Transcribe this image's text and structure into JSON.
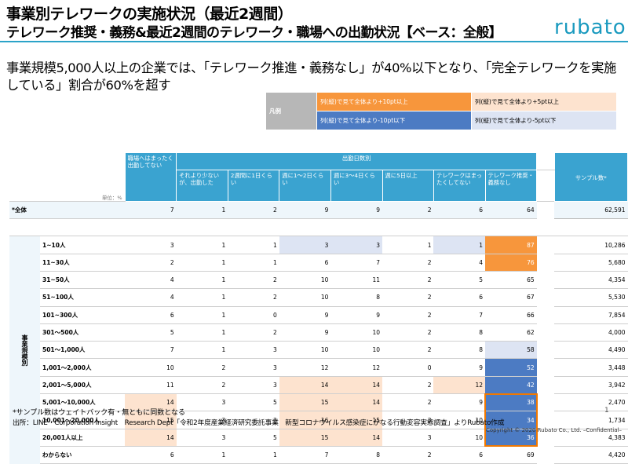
{
  "header": {
    "title": "事業別テレワークの実施状況（最近2週間）",
    "subtitle": "テレワーク推奨・義務&最近2週間のテレワーク・職場への出勤状況【ベース：全般】",
    "logo": "rubato"
  },
  "lead": "事業規模5,000人以上の企業では、「テレワーク推進・義務なし」が40%以下となり、「完全テレワークを実施している」割合が60%を超す",
  "legend": {
    "label": "凡例",
    "items": [
      "列(縦)で見て全体より+10pt以上",
      "列(縦)で見て全体より+5pt以上",
      "列(縦)で見て全体より-10pt以下",
      "列(縦)で見て全体より-5pt以下"
    ],
    "colors": {
      "plus10": "#f7963c",
      "plus5": "#fde3cf",
      "minus10": "#4c7bc3",
      "minus5": "#dde4f3",
      "header": "#3aa3d0"
    }
  },
  "table": {
    "unit": "単位：%",
    "group_header": "出勤日数別",
    "col0": "職場へはまったく出勤してない",
    "columns": [
      "それより少ないが、出勤した",
      "2週間に1日くらい",
      "週に1〜2日くらい",
      "週に3〜4日くらい",
      "週に5日以上",
      "テレワークはまったくしてない",
      "テレワーク推奨・義務なし"
    ],
    "sample_header": "サンプル数*",
    "side_label": "事業規模別",
    "total_row": {
      "label": "*全体",
      "values": [
        "7",
        "1",
        "2",
        "9",
        "9",
        "2",
        "6",
        "64"
      ],
      "sample": "62,591"
    },
    "rows": [
      {
        "label": "1~10人",
        "values": [
          "3",
          "1",
          "1",
          "3",
          "3",
          "1",
          "1",
          "87"
        ],
        "sample": "10,286",
        "tints": [
          "",
          "",
          "",
          "lb",
          "lb",
          "",
          "lb",
          "o"
        ]
      },
      {
        "label": "11~30人",
        "values": [
          "2",
          "1",
          "1",
          "6",
          "7",
          "2",
          "4",
          "76"
        ],
        "sample": "5,680",
        "tints": [
          "",
          "",
          "",
          "",
          "",
          "",
          "",
          "o"
        ]
      },
      {
        "label": "31~50人",
        "values": [
          "4",
          "1",
          "2",
          "10",
          "11",
          "2",
          "5",
          "65"
        ],
        "sample": "4,354",
        "tints": [
          "",
          "",
          "",
          "",
          "",
          "",
          "",
          ""
        ]
      },
      {
        "label": "51~100人",
        "values": [
          "4",
          "1",
          "2",
          "10",
          "8",
          "2",
          "6",
          "67"
        ],
        "sample": "5,530",
        "tints": [
          "",
          "",
          "",
          "",
          "",
          "",
          "",
          ""
        ]
      },
      {
        "label": "101~300人",
        "values": [
          "6",
          "1",
          "0",
          "9",
          "9",
          "2",
          "7",
          "66"
        ],
        "sample": "7,854",
        "tints": [
          "",
          "",
          "",
          "",
          "",
          "",
          "",
          ""
        ]
      },
      {
        "label": "301〜500人",
        "values": [
          "5",
          "1",
          "2",
          "9",
          "10",
          "2",
          "8",
          "62"
        ],
        "sample": "4,000",
        "tints": [
          "",
          "",
          "",
          "",
          "",
          "",
          "",
          ""
        ]
      },
      {
        "label": "501〜1,000人",
        "values": [
          "7",
          "1",
          "3",
          "10",
          "10",
          "2",
          "8",
          "58"
        ],
        "sample": "4,490",
        "tints": [
          "",
          "",
          "",
          "",
          "",
          "",
          "",
          "lb"
        ]
      },
      {
        "label": "1,001〜2,000人",
        "values": [
          "10",
          "2",
          "3",
          "12",
          "12",
          "0",
          "9",
          "52"
        ],
        "sample": "3,448",
        "tints": [
          "",
          "",
          "",
          "",
          "",
          "",
          "",
          "b"
        ]
      },
      {
        "label": "2,001〜5,000人",
        "values": [
          "11",
          "2",
          "3",
          "14",
          "14",
          "2",
          "12",
          "42"
        ],
        "sample": "3,942",
        "tints": [
          "",
          "",
          "",
          "lo",
          "lo",
          "",
          "lo",
          "b"
        ]
      },
      {
        "label": "5,001〜10,000人",
        "values": [
          "14",
          "3",
          "5",
          "15",
          "14",
          "2",
          "9",
          "38"
        ],
        "sample": "2,470",
        "tints": [
          "lo",
          "",
          "",
          "lo",
          "lo",
          "",
          "",
          "b"
        ]
      },
      {
        "label": "10,001〜20,000人",
        "values": [
          "15",
          "3",
          "3",
          "16",
          "15",
          "3",
          "10",
          "34"
        ],
        "sample": "1,734",
        "tints": [
          "lo",
          "",
          "",
          "lo",
          "lo",
          "",
          "",
          "b"
        ]
      },
      {
        "label": "20,001人以上",
        "values": [
          "14",
          "3",
          "5",
          "15",
          "14",
          "3",
          "10",
          "36"
        ],
        "sample": "4,383",
        "tints": [
          "lo",
          "",
          "",
          "lo",
          "lo",
          "",
          "",
          "b"
        ]
      },
      {
        "label": "わからない",
        "values": [
          "6",
          "1",
          "1",
          "7",
          "8",
          "2",
          "6",
          "69"
        ],
        "sample": "4,420",
        "tints": [
          "",
          "",
          "",
          "",
          "",
          "",
          "",
          ""
        ]
      }
    ]
  },
  "footer": {
    "note": "*サンプル数はウェイトバック有・無ともに同数となる",
    "source": "出所：LINE　Corporation Insight　Research Dept「令和2年度産業経済研究委託事業　新型コロナウイルス感染症にかなる行動変容実態調査」よりRubato作成",
    "page": "1",
    "copyright": "Copyright © 2020 Rubato Co., Ltd. –Confidential–"
  }
}
